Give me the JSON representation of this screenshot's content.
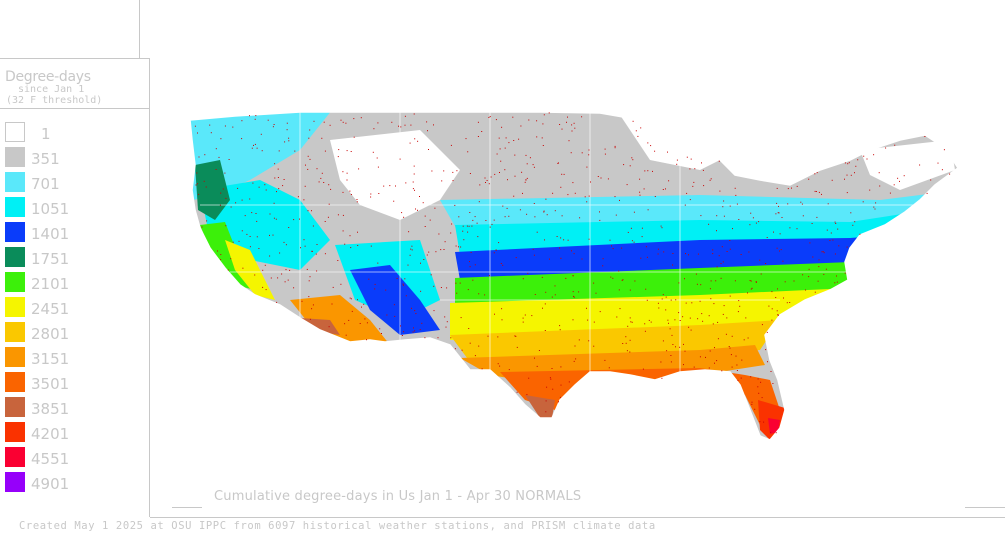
{
  "legend": {
    "title": "Degree-days",
    "subtitle_1": "since Jan 1",
    "subtitle_2": "(32 F threshold)",
    "items": [
      {
        "label": "1",
        "color": "#ffffff"
      },
      {
        "label": "351",
        "color": "#c8c8c8"
      },
      {
        "label": "701",
        "color": "#5ae8fa"
      },
      {
        "label": "1051",
        "color": "#00f0f5"
      },
      {
        "label": "1401",
        "color": "#0a3cfa"
      },
      {
        "label": "1751",
        "color": "#0a8c5a"
      },
      {
        "label": "2101",
        "color": "#3cf00a"
      },
      {
        "label": "2451",
        "color": "#f5f500"
      },
      {
        "label": "2801",
        "color": "#fac800"
      },
      {
        "label": "3151",
        "color": "#fa9600"
      },
      {
        "label": "3501",
        "color": "#fa6400"
      },
      {
        "label": "3851",
        "color": "#c8643c"
      },
      {
        "label": "4201",
        "color": "#fa3200"
      },
      {
        "label": "4551",
        "color": "#fa0032"
      },
      {
        "label": "4901",
        "color": "#9600fa"
      }
    ]
  },
  "map": {
    "title": "Cumulative degree-days in Us  Jan 1 - Apr 30 NORMALS",
    "station_marker_color": "#c80000",
    "boundary_color": "#ffffff"
  },
  "footer": {
    "text": "Created May 1 2025 at OSU IPPC from 6097 historical weather stations, and PRISM climate data"
  }
}
